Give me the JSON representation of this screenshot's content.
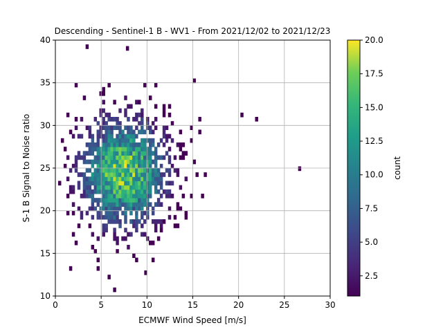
{
  "chart_data": {
    "type": "heatmap",
    "title": "Descending - Sentinel-1 B - WV1 - From 2021/12/02 to 2021/12/23",
    "xlabel": "ECMWF Wind Speed [m/s]",
    "ylabel": "S-1 B Signal to Noise ratio",
    "xlim": [
      0,
      30
    ],
    "ylim": [
      10,
      40
    ],
    "xticks": [
      "0",
      "5",
      "10",
      "15",
      "20",
      "25",
      "30"
    ],
    "yticks": [
      "10",
      "15",
      "20",
      "25",
      "30",
      "35",
      "40"
    ],
    "grid": true,
    "colorbar": {
      "label": "count",
      "min": 1,
      "max": 20,
      "ticks": [
        "2.5",
        "5.0",
        "7.5",
        "10.0",
        "12.5",
        "15.0",
        "17.5",
        "20.0"
      ],
      "colormap": "viridis"
    },
    "bin_width_x": 0.3,
    "bin_width_y": 0.5,
    "density_model": {
      "center_x": 7.5,
      "center_y": 24.5,
      "sigma_x": 3.0,
      "sigma_y": 4.0,
      "peak_count": 18
    },
    "outliers": [
      {
        "x": 26.5,
        "y": 24.7,
        "count": 1
      },
      {
        "x": 21.8,
        "y": 30.5,
        "count": 1
      },
      {
        "x": 20.2,
        "y": 31.0,
        "count": 1
      },
      {
        "x": 7.7,
        "y": 38.8,
        "count": 1
      },
      {
        "x": 9.7,
        "y": 12.5,
        "count": 1
      },
      {
        "x": 5.7,
        "y": 12.0,
        "count": 1
      }
    ]
  }
}
